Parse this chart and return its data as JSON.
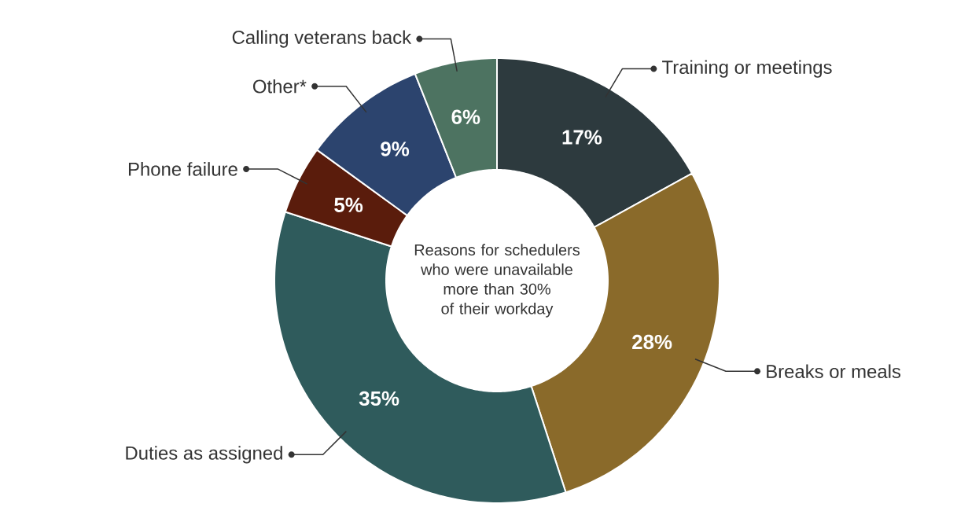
{
  "chart_data": {
    "type": "donut",
    "title": "Reasons for schedulers who were unavailable more than 30% of their workday",
    "categories": [
      "Training or meetings",
      "Breaks or meals",
      "Duties as assigned",
      "Phone failure",
      "Other*",
      "Calling veterans back"
    ],
    "values": [
      17,
      28,
      35,
      5,
      9,
      6
    ],
    "colors": [
      "#2d3a3e",
      "#8a6a2a",
      "#2f5b5c",
      "#5a1c0c",
      "#2c446e",
      "#4d7361"
    ],
    "value_labels": [
      "17%",
      "28%",
      "35%",
      "5%",
      "9%",
      "6%"
    ]
  }
}
